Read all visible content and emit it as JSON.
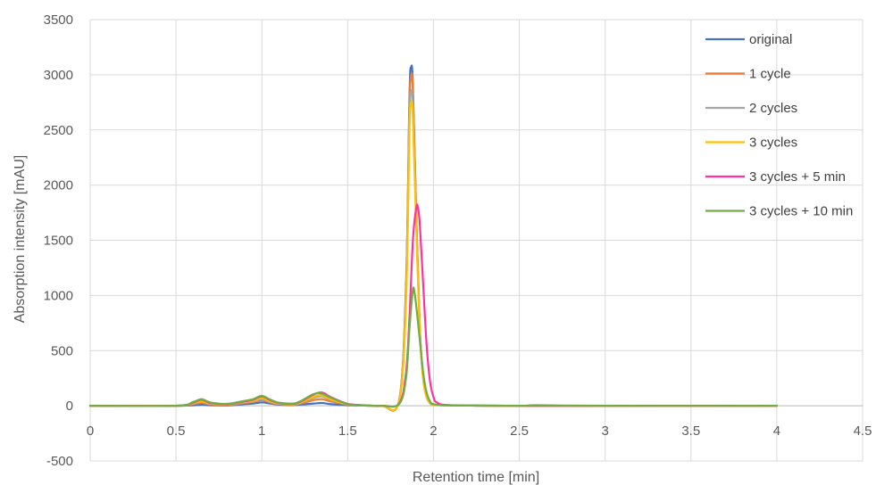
{
  "chart_data": {
    "type": "line",
    "title": "",
    "xlabel": "Retention time  [min]",
    "ylabel": "Absorption intensity [mAU]",
    "xlim": [
      0,
      4.5
    ],
    "ylim": [
      -500,
      3500
    ],
    "xticks": [
      0,
      0.5,
      1,
      1.5,
      2,
      2.5,
      3,
      3.5,
      4,
      4.5
    ],
    "xtick_labels": [
      "0",
      "0.5",
      "1",
      "1.5",
      "2",
      "2.5",
      "3",
      "3.5",
      "4",
      "4.5"
    ],
    "yticks": [
      -500,
      0,
      500,
      1000,
      1500,
      2000,
      2500,
      3000,
      3500
    ],
    "ytick_labels": [
      "-500",
      "0",
      "500",
      "1000",
      "1500",
      "2000",
      "2500",
      "3000",
      "3500"
    ],
    "grid": true,
    "legend_position": "top-right",
    "series": [
      {
        "name": "original",
        "color": "#4472C4",
        "x": [
          0,
          0.5,
          0.6,
          0.65,
          0.7,
          0.8,
          0.9,
          0.95,
          1.0,
          1.05,
          1.1,
          1.2,
          1.3,
          1.35,
          1.4,
          1.5,
          1.6,
          1.7,
          1.8,
          1.84,
          1.86,
          1.87,
          1.88,
          1.9,
          1.92,
          1.94,
          1.96,
          1.98,
          2.0,
          2.1,
          2.5,
          3.0,
          4.0
        ],
        "y": [
          0,
          0,
          5,
          10,
          5,
          3,
          15,
          20,
          30,
          20,
          10,
          8,
          20,
          25,
          15,
          5,
          2,
          0,
          50,
          1100,
          2800,
          3070,
          2900,
          1700,
          700,
          250,
          80,
          25,
          10,
          3,
          0,
          0,
          0
        ]
      },
      {
        "name": "1 cycle",
        "color": "#ED7D31",
        "x": [
          0,
          0.5,
          0.6,
          0.65,
          0.7,
          0.8,
          0.9,
          0.95,
          1.0,
          1.05,
          1.1,
          1.2,
          1.3,
          1.35,
          1.4,
          1.5,
          1.6,
          1.7,
          1.8,
          1.84,
          1.86,
          1.87,
          1.88,
          1.9,
          1.92,
          1.94,
          1.96,
          1.98,
          2.0,
          2.1,
          2.5,
          3.0,
          4.0
        ],
        "y": [
          0,
          0,
          15,
          25,
          12,
          8,
          25,
          35,
          50,
          30,
          15,
          12,
          50,
          60,
          40,
          10,
          3,
          0,
          50,
          1050,
          2700,
          2990,
          2850,
          1700,
          720,
          260,
          85,
          28,
          12,
          3,
          0,
          0,
          0
        ]
      },
      {
        "name": "2 cycles",
        "color": "#A5A5A5",
        "x": [
          0,
          0.5,
          0.6,
          0.65,
          0.7,
          0.8,
          0.9,
          0.95,
          1.0,
          1.05,
          1.1,
          1.2,
          1.3,
          1.35,
          1.4,
          1.5,
          1.6,
          1.7,
          1.8,
          1.84,
          1.86,
          1.87,
          1.88,
          1.9,
          1.92,
          1.94,
          1.96,
          1.98,
          2.0,
          2.1,
          2.5,
          3.0,
          4.0
        ],
        "y": [
          0,
          0,
          20,
          35,
          18,
          10,
          30,
          40,
          60,
          35,
          18,
          15,
          70,
          85,
          55,
          12,
          3,
          0,
          45,
          1000,
          2600,
          2850,
          2700,
          1650,
          700,
          250,
          80,
          26,
          11,
          3,
          0,
          0,
          0
        ]
      },
      {
        "name": "3 cycles",
        "color": "#FFC000",
        "x": [
          0,
          0.5,
          0.6,
          0.65,
          0.7,
          0.8,
          0.9,
          0.95,
          1.0,
          1.05,
          1.1,
          1.2,
          1.3,
          1.35,
          1.4,
          1.5,
          1.6,
          1.7,
          1.8,
          1.84,
          1.86,
          1.87,
          1.88,
          1.9,
          1.92,
          1.94,
          1.96,
          1.98,
          2.0,
          2.1,
          2.5,
          3.0,
          4.0
        ],
        "y": [
          0,
          0,
          25,
          40,
          20,
          12,
          35,
          45,
          70,
          40,
          20,
          18,
          80,
          95,
          60,
          14,
          4,
          0,
          40,
          950,
          2500,
          2750,
          2600,
          1600,
          680,
          240,
          78,
          25,
          10,
          3,
          0,
          0,
          0
        ]
      },
      {
        "name": "3 cycles  + 5 min",
        "color": "#FF3399",
        "x": [
          0,
          0.5,
          0.6,
          0.65,
          0.7,
          0.8,
          0.9,
          0.95,
          1.0,
          1.05,
          1.1,
          1.2,
          1.3,
          1.35,
          1.4,
          1.5,
          1.6,
          1.7,
          1.8,
          1.84,
          1.86,
          1.88,
          1.9,
          1.91,
          1.92,
          1.94,
          1.96,
          1.98,
          2.0,
          2.02,
          2.1,
          2.5,
          3.0,
          4.0
        ],
        "y": [
          0,
          0,
          30,
          55,
          25,
          15,
          40,
          55,
          85,
          50,
          25,
          22,
          100,
          120,
          80,
          18,
          5,
          0,
          20,
          300,
          800,
          1500,
          1800,
          1790,
          1650,
          1100,
          550,
          220,
          80,
          30,
          5,
          0,
          0,
          0
        ]
      },
      {
        "name": "3 cycles + 10 min",
        "color": "#70AD47",
        "x": [
          0,
          0.5,
          0.6,
          0.65,
          0.7,
          0.8,
          0.9,
          0.95,
          1.0,
          1.05,
          1.1,
          1.2,
          1.3,
          1.35,
          1.4,
          1.5,
          1.6,
          1.7,
          1.8,
          1.84,
          1.86,
          1.88,
          1.89,
          1.9,
          1.92,
          1.94,
          1.96,
          1.98,
          2.0,
          2.1,
          2.5,
          2.6,
          3.0,
          4.0
        ],
        "y": [
          0,
          0,
          35,
          60,
          30,
          18,
          45,
          60,
          90,
          55,
          28,
          25,
          105,
          110,
          75,
          15,
          4,
          0,
          15,
          250,
          700,
          1050,
          1020,
          900,
          600,
          300,
          120,
          40,
          15,
          3,
          0,
          5,
          0,
          0
        ]
      }
    ]
  }
}
